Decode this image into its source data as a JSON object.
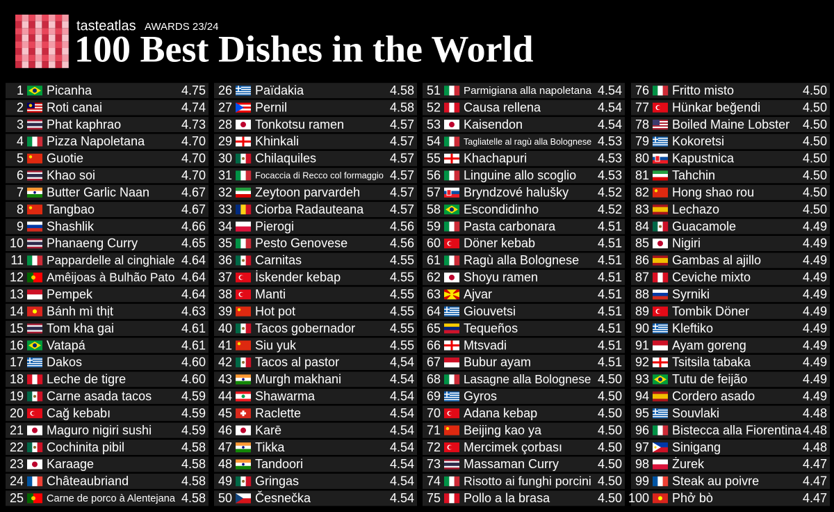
{
  "header": {
    "brand": "tasteatlas",
    "award": "AWARDS 23/24",
    "title": "100 Best Dishes in the World"
  },
  "entries": [
    {
      "rank": 1,
      "dish": "Picanha",
      "score": "4.75"
    },
    {
      "rank": 2,
      "dish": "Roti canai",
      "score": "4.74"
    },
    {
      "rank": 3,
      "dish": "Phat kaphrao",
      "score": "4.73"
    },
    {
      "rank": 4,
      "dish": "Pizza Napoletana",
      "score": "4.70"
    },
    {
      "rank": 5,
      "dish": "Guotie",
      "score": "4.70"
    },
    {
      "rank": 6,
      "dish": "Khao soi",
      "score": "4.70"
    },
    {
      "rank": 7,
      "dish": "Butter Garlic Naan",
      "score": "4.67"
    },
    {
      "rank": 8,
      "dish": "Tangbao",
      "score": "4.67"
    },
    {
      "rank": 9,
      "dish": "Shashlik",
      "score": "4.66"
    },
    {
      "rank": 10,
      "dish": "Phanaeng Curry",
      "score": "4.65"
    },
    {
      "rank": 11,
      "dish": "Pappardelle al cinghiale",
      "score": "4.64"
    },
    {
      "rank": 12,
      "dish": "Amêijoas à Bulhão Pato",
      "score": "4.64"
    },
    {
      "rank": 13,
      "dish": "Pempek",
      "score": "4.64"
    },
    {
      "rank": 14,
      "dish": "Bánh mì thịt",
      "score": "4.63"
    },
    {
      "rank": 15,
      "dish": "Tom kha gai",
      "score": "4.61"
    },
    {
      "rank": 16,
      "dish": "Vatapá",
      "score": "4.61"
    },
    {
      "rank": 17,
      "dish": "Dakos",
      "score": "4.60"
    },
    {
      "rank": 18,
      "dish": "Leche de tigre",
      "score": "4.60"
    },
    {
      "rank": 19,
      "dish": "Carne asada tacos",
      "score": "4.59"
    },
    {
      "rank": 20,
      "dish": "Cağ kebabı",
      "score": "4.59"
    },
    {
      "rank": 21,
      "dish": "Maguro nigiri sushi",
      "score": "4.59"
    },
    {
      "rank": 22,
      "dish": "Cochinita pibil",
      "score": "4.58"
    },
    {
      "rank": 23,
      "dish": "Karaage",
      "score": "4.58"
    },
    {
      "rank": 24,
      "dish": "Châteaubriand",
      "score": "4.58"
    },
    {
      "rank": 25,
      "dish": "Carne de porco à Alentejana",
      "score": "4.58"
    },
    {
      "rank": 26,
      "dish": "Païdakia",
      "score": "4.58"
    },
    {
      "rank": 27,
      "dish": "Pernil",
      "score": "4.58"
    },
    {
      "rank": 28,
      "dish": "Tonkotsu ramen",
      "score": "4.57"
    },
    {
      "rank": 29,
      "dish": "Khinkali",
      "score": "4.57"
    },
    {
      "rank": 30,
      "dish": "Chilaquiles",
      "score": "4.57"
    },
    {
      "rank": 31,
      "dish": "Focaccia di Recco col formaggio",
      "score": "4.57"
    },
    {
      "rank": 32,
      "dish": "Zeytoon parvardeh",
      "score": "4.57"
    },
    {
      "rank": 33,
      "dish": "Ciorba Radauteana",
      "score": "4.57"
    },
    {
      "rank": 34,
      "dish": "Pierogi",
      "score": "4.56"
    },
    {
      "rank": 35,
      "dish": "Pesto Genovese",
      "score": "4.56"
    },
    {
      "rank": 36,
      "dish": "Carnitas",
      "score": "4.55"
    },
    {
      "rank": 37,
      "dish": "İskender kebap",
      "score": "4.55"
    },
    {
      "rank": 38,
      "dish": "Manti",
      "score": "4.55"
    },
    {
      "rank": 39,
      "dish": "Hot pot",
      "score": "4.55"
    },
    {
      "rank": 40,
      "dish": "Tacos gobernador",
      "score": "4.55"
    },
    {
      "rank": 41,
      "dish": "Siu yuk",
      "score": "4.55"
    },
    {
      "rank": 42,
      "dish": "Tacos al pastor",
      "score": "4,54"
    },
    {
      "rank": 43,
      "dish": "Murgh makhani",
      "score": "4.54"
    },
    {
      "rank": 44,
      "dish": "Shawarma",
      "score": "4.54"
    },
    {
      "rank": 45,
      "dish": "Raclette",
      "score": "4.54"
    },
    {
      "rank": 46,
      "dish": "Karē",
      "score": "4.54"
    },
    {
      "rank": 47,
      "dish": "Tikka",
      "score": "4.54"
    },
    {
      "rank": 48,
      "dish": "Tandoori",
      "score": "4.54"
    },
    {
      "rank": 49,
      "dish": "Gringas",
      "score": "4.54"
    },
    {
      "rank": 50,
      "dish": "Česnečka",
      "score": "4.54"
    },
    {
      "rank": 51,
      "dish": "Parmigiana alla napoletana",
      "score": "4.54"
    },
    {
      "rank": 52,
      "dish": "Causa rellena",
      "score": "4.54"
    },
    {
      "rank": 53,
      "dish": "Kaisendon",
      "score": "4.54"
    },
    {
      "rank": 54,
      "dish": "Tagliatelle al ragù alla Bolognese",
      "score": "4.53"
    },
    {
      "rank": 55,
      "dish": "Khachapuri",
      "score": "4.53"
    },
    {
      "rank": 56,
      "dish": "Linguine allo scoglio",
      "score": "4.53"
    },
    {
      "rank": 57,
      "dish": "Bryndzové halušky",
      "score": "4.52"
    },
    {
      "rank": 58,
      "dish": "Escondidinho",
      "score": "4.52"
    },
    {
      "rank": 59,
      "dish": "Pasta carbonara",
      "score": "4.51"
    },
    {
      "rank": 60,
      "dish": "Döner kebab",
      "score": "4.51"
    },
    {
      "rank": 61,
      "dish": "Ragù alla Bolognese",
      "score": "4.51"
    },
    {
      "rank": 62,
      "dish": "Shoyu ramen",
      "score": "4.51"
    },
    {
      "rank": 63,
      "dish": "Ajvar",
      "score": "4.51"
    },
    {
      "rank": 64,
      "dish": "Giouvetsi",
      "score": "4.51"
    },
    {
      "rank": 65,
      "dish": "Tequeños",
      "score": "4.51"
    },
    {
      "rank": 66,
      "dish": "Mtsvadi",
      "score": "4.51"
    },
    {
      "rank": 67,
      "dish": "Bubur ayam",
      "score": "4.51"
    },
    {
      "rank": 68,
      "dish": "Lasagne alla Bolognese",
      "score": "4.50"
    },
    {
      "rank": 69,
      "dish": "Gyros",
      "score": "4.50"
    },
    {
      "rank": 70,
      "dish": "Adana kebap",
      "score": "4.50"
    },
    {
      "rank": 71,
      "dish": "Beijing kao ya",
      "score": "4.50"
    },
    {
      "rank": 72,
      "dish": "Mercimek çorbası",
      "score": "4.50"
    },
    {
      "rank": 73,
      "dish": "Massaman Curry",
      "score": "4.50"
    },
    {
      "rank": 74,
      "dish": "Risotto ai funghi porcini",
      "score": "4.50"
    },
    {
      "rank": 75,
      "dish": "Pollo a la brasa",
      "score": "4.50"
    },
    {
      "rank": 76,
      "dish": "Fritto misto",
      "score": "4.50"
    },
    {
      "rank": 77,
      "dish": "Hünkar beğendi",
      "score": "4.50"
    },
    {
      "rank": 78,
      "dish": "Boiled Maine Lobster",
      "score": "4.50"
    },
    {
      "rank": 79,
      "dish": "Kokoretsi",
      "score": "4.50"
    },
    {
      "rank": 80,
      "dish": "Kapustnica",
      "score": "4.50"
    },
    {
      "rank": 81,
      "dish": "Tahchin",
      "score": "4.50"
    },
    {
      "rank": 82,
      "dish": "Hong shao rou",
      "score": "4.50"
    },
    {
      "rank": 83,
      "dish": "Lechazo",
      "score": "4.50"
    },
    {
      "rank": 84,
      "dish": "Guacamole",
      "score": "4.49"
    },
    {
      "rank": 85,
      "dish": "Nigiri",
      "score": "4.49"
    },
    {
      "rank": 86,
      "dish": "Gambas al ajillo",
      "score": "4.49"
    },
    {
      "rank": 87,
      "dish": "Ceviche mixto",
      "score": "4.49"
    },
    {
      "rank": 88,
      "dish": "Syrniki",
      "score": "4.49"
    },
    {
      "rank": 89,
      "dish": "Tombik Döner",
      "score": "4.49"
    },
    {
      "rank": 90,
      "dish": "Kleftiko",
      "score": "4.49"
    },
    {
      "rank": 91,
      "dish": "Ayam goreng",
      "score": "4.49"
    },
    {
      "rank": 92,
      "dish": "Tsitsila tabaka",
      "score": "4.49"
    },
    {
      "rank": 93,
      "dish": "Tutu de feijão",
      "score": "4.49"
    },
    {
      "rank": 94,
      "dish": "Cordero asado",
      "score": "4.49"
    },
    {
      "rank": 95,
      "dish": "Souvlaki",
      "score": "4.48"
    },
    {
      "rank": 96,
      "dish": "Bistecca alla Fiorentina",
      "score": "4.48"
    },
    {
      "rank": 97,
      "dish": "Sinigang",
      "score": "4.48"
    },
    {
      "rank": 98,
      "dish": "Żurek",
      "score": "4.47"
    },
    {
      "rank": 99,
      "dish": "Steak au poivre",
      "score": "4.47"
    },
    {
      "rank": 100,
      "dish": "Phở bò",
      "score": "4.47"
    }
  ]
}
